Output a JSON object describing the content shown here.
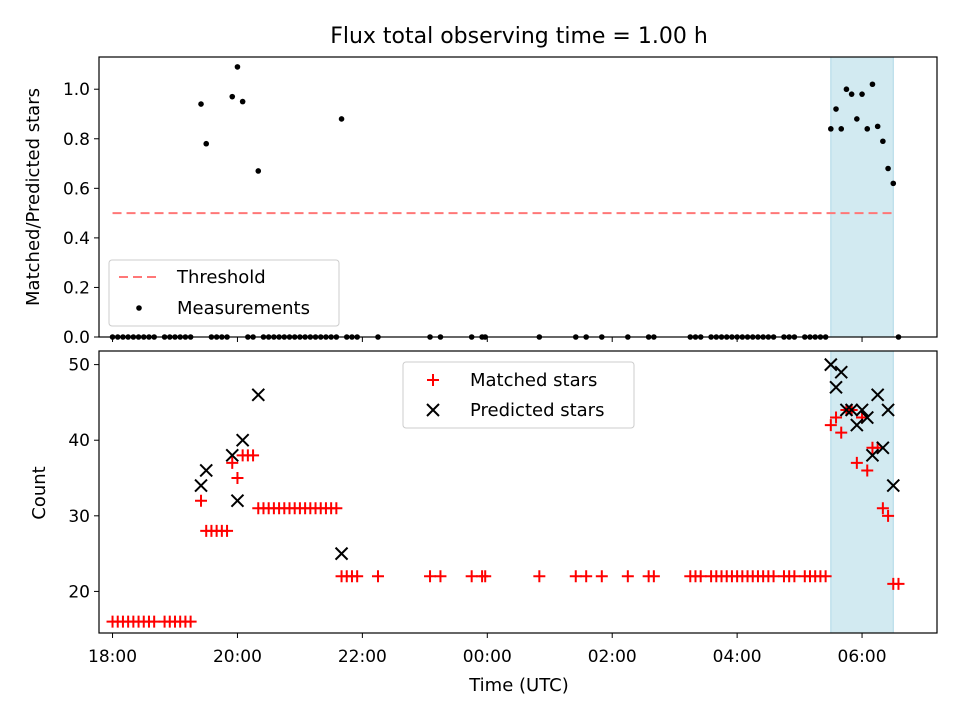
{
  "title": "Flux total observing time = 1.00 h",
  "colors": {
    "threshold": "#ff7777",
    "measurement": "#000000",
    "matched": "#ff0000",
    "predicted": "#000000",
    "window": "#add8e6"
  },
  "chart_data": [
    {
      "type": "scatter",
      "ylabel": "Matched/Predicted stars",
      "xlabel": "",
      "xlim": [
        "17:47",
        "07:12"
      ],
      "ylim": [
        0,
        1.13
      ],
      "yticks": [
        "0.0",
        "0.2",
        "0.4",
        "0.6",
        "0.8",
        "1.0"
      ],
      "xticks": [
        "18:00",
        "20:00",
        "22:00",
        "00:00",
        "02:00",
        "04:00",
        "06:00"
      ],
      "highlight_window": [
        "05:30",
        "06:30"
      ],
      "legend": {
        "position": "lower-left",
        "entries": [
          "Threshold",
          "Measurements"
        ]
      },
      "threshold": {
        "name": "Threshold",
        "y": 0.5,
        "x_range": [
          "18:00",
          "06:30"
        ]
      },
      "series": [
        {
          "name": "Measurements",
          "points": [
            [
              "18:00",
              0
            ],
            [
              "18:05",
              0
            ],
            [
              "18:10",
              0
            ],
            [
              "18:15",
              0
            ],
            [
              "18:20",
              0
            ],
            [
              "18:25",
              0
            ],
            [
              "18:30",
              0
            ],
            [
              "18:35",
              0
            ],
            [
              "18:40",
              0
            ],
            [
              "18:50",
              0
            ],
            [
              "18:55",
              0
            ],
            [
              "19:00",
              0
            ],
            [
              "19:05",
              0
            ],
            [
              "19:10",
              0
            ],
            [
              "19:15",
              0
            ],
            [
              "19:25",
              0.94
            ],
            [
              "19:30",
              0.78
            ],
            [
              "19:35",
              0
            ],
            [
              "19:40",
              0
            ],
            [
              "19:45",
              0
            ],
            [
              "19:50",
              0
            ],
            [
              "19:55",
              0.97
            ],
            [
              "20:00",
              1.09
            ],
            [
              "20:05",
              0.95
            ],
            [
              "20:10",
              0
            ],
            [
              "20:15",
              0
            ],
            [
              "20:20",
              0.67
            ],
            [
              "20:25",
              0
            ],
            [
              "20:30",
              0
            ],
            [
              "20:35",
              0
            ],
            [
              "20:40",
              0
            ],
            [
              "20:45",
              0
            ],
            [
              "20:50",
              0
            ],
            [
              "20:55",
              0
            ],
            [
              "21:00",
              0
            ],
            [
              "21:05",
              0
            ],
            [
              "21:10",
              0
            ],
            [
              "21:15",
              0
            ],
            [
              "21:20",
              0
            ],
            [
              "21:25",
              0
            ],
            [
              "21:30",
              0
            ],
            [
              "21:35",
              0
            ],
            [
              "21:40",
              0.88
            ],
            [
              "21:45",
              0
            ],
            [
              "21:50",
              0
            ],
            [
              "21:55",
              0
            ],
            [
              "22:15",
              0
            ],
            [
              "23:05",
              0
            ],
            [
              "23:15",
              0
            ],
            [
              "23:45",
              0
            ],
            [
              "23:55",
              0
            ],
            [
              "23:58",
              0
            ],
            [
              "00:50",
              0
            ],
            [
              "01:25",
              0
            ],
            [
              "01:35",
              0
            ],
            [
              "01:50",
              0
            ],
            [
              "02:15",
              0
            ],
            [
              "02:35",
              0
            ],
            [
              "02:40",
              0
            ],
            [
              "03:15",
              0
            ],
            [
              "03:20",
              0
            ],
            [
              "03:25",
              0
            ],
            [
              "03:35",
              0
            ],
            [
              "03:40",
              0
            ],
            [
              "03:45",
              0
            ],
            [
              "03:50",
              0
            ],
            [
              "03:55",
              0
            ],
            [
              "04:00",
              0
            ],
            [
              "04:05",
              0
            ],
            [
              "04:10",
              0
            ],
            [
              "04:15",
              0
            ],
            [
              "04:20",
              0
            ],
            [
              "04:25",
              0
            ],
            [
              "04:30",
              0
            ],
            [
              "04:35",
              0
            ],
            [
              "04:45",
              0
            ],
            [
              "04:50",
              0
            ],
            [
              "04:55",
              0
            ],
            [
              "05:05",
              0
            ],
            [
              "05:10",
              0
            ],
            [
              "05:15",
              0
            ],
            [
              "05:20",
              0
            ],
            [
              "05:25",
              0
            ],
            [
              "05:30",
              0.84
            ],
            [
              "05:35",
              0.92
            ],
            [
              "05:40",
              0.84
            ],
            [
              "05:45",
              1.0
            ],
            [
              "05:50",
              0.98
            ],
            [
              "05:55",
              0.88
            ],
            [
              "06:00",
              0.98
            ],
            [
              "06:05",
              0.84
            ],
            [
              "06:10",
              1.02
            ],
            [
              "06:15",
              0.85
            ],
            [
              "06:20",
              0.79
            ],
            [
              "06:25",
              0.68
            ],
            [
              "06:30",
              0.62
            ],
            [
              "06:35",
              0
            ]
          ]
        }
      ]
    },
    {
      "type": "scatter",
      "ylabel": "Count",
      "xlabel": "Time (UTC)",
      "xlim": [
        "17:47",
        "07:12"
      ],
      "ylim": [
        14.5,
        51.8
      ],
      "yticks": [
        "20",
        "30",
        "40",
        "50"
      ],
      "xticks": [
        "18:00",
        "20:00",
        "22:00",
        "00:00",
        "02:00",
        "04:00",
        "06:00"
      ],
      "highlight_window": [
        "05:30",
        "06:30"
      ],
      "legend": {
        "position": "top-center",
        "entries": [
          "Matched stars",
          "Predicted stars"
        ]
      },
      "series": [
        {
          "name": "Matched stars",
          "points": [
            [
              "18:00",
              16
            ],
            [
              "18:05",
              16
            ],
            [
              "18:10",
              16
            ],
            [
              "18:15",
              16
            ],
            [
              "18:20",
              16
            ],
            [
              "18:25",
              16
            ],
            [
              "18:30",
              16
            ],
            [
              "18:35",
              16
            ],
            [
              "18:40",
              16
            ],
            [
              "18:50",
              16
            ],
            [
              "18:55",
              16
            ],
            [
              "19:00",
              16
            ],
            [
              "19:05",
              16
            ],
            [
              "19:10",
              16
            ],
            [
              "19:15",
              16
            ],
            [
              "19:25",
              32
            ],
            [
              "19:30",
              28
            ],
            [
              "19:35",
              28
            ],
            [
              "19:40",
              28
            ],
            [
              "19:45",
              28
            ],
            [
              "19:50",
              28
            ],
            [
              "19:55",
              37
            ],
            [
              "20:00",
              35
            ],
            [
              "20:05",
              38
            ],
            [
              "20:10",
              38
            ],
            [
              "20:15",
              38
            ],
            [
              "20:20",
              31
            ],
            [
              "20:25",
              31
            ],
            [
              "20:30",
              31
            ],
            [
              "20:35",
              31
            ],
            [
              "20:40",
              31
            ],
            [
              "20:45",
              31
            ],
            [
              "20:50",
              31
            ],
            [
              "20:55",
              31
            ],
            [
              "21:00",
              31
            ],
            [
              "21:05",
              31
            ],
            [
              "21:10",
              31
            ],
            [
              "21:15",
              31
            ],
            [
              "21:20",
              31
            ],
            [
              "21:25",
              31
            ],
            [
              "21:30",
              31
            ],
            [
              "21:35",
              31
            ],
            [
              "21:40",
              22
            ],
            [
              "21:45",
              22
            ],
            [
              "21:50",
              22
            ],
            [
              "21:55",
              22
            ],
            [
              "22:15",
              22
            ],
            [
              "23:05",
              22
            ],
            [
              "23:15",
              22
            ],
            [
              "23:45",
              22
            ],
            [
              "23:55",
              22
            ],
            [
              "23:58",
              22
            ],
            [
              "00:50",
              22
            ],
            [
              "01:25",
              22
            ],
            [
              "01:35",
              22
            ],
            [
              "01:50",
              22
            ],
            [
              "02:15",
              22
            ],
            [
              "02:35",
              22
            ],
            [
              "02:40",
              22
            ],
            [
              "03:15",
              22
            ],
            [
              "03:20",
              22
            ],
            [
              "03:25",
              22
            ],
            [
              "03:35",
              22
            ],
            [
              "03:40",
              22
            ],
            [
              "03:45",
              22
            ],
            [
              "03:50",
              22
            ],
            [
              "03:55",
              22
            ],
            [
              "04:00",
              22
            ],
            [
              "04:05",
              22
            ],
            [
              "04:10",
              22
            ],
            [
              "04:15",
              22
            ],
            [
              "04:20",
              22
            ],
            [
              "04:25",
              22
            ],
            [
              "04:30",
              22
            ],
            [
              "04:35",
              22
            ],
            [
              "04:45",
              22
            ],
            [
              "04:50",
              22
            ],
            [
              "04:55",
              22
            ],
            [
              "05:05",
              22
            ],
            [
              "05:10",
              22
            ],
            [
              "05:15",
              22
            ],
            [
              "05:20",
              22
            ],
            [
              "05:25",
              22
            ],
            [
              "05:30",
              42
            ],
            [
              "05:35",
              43
            ],
            [
              "05:40",
              41
            ],
            [
              "05:45",
              44
            ],
            [
              "05:50",
              44
            ],
            [
              "05:55",
              37
            ],
            [
              "06:00",
              43
            ],
            [
              "06:05",
              36
            ],
            [
              "06:10",
              39
            ],
            [
              "06:15",
              39
            ],
            [
              "06:20",
              31
            ],
            [
              "06:25",
              30
            ],
            [
              "06:30",
              21
            ],
            [
              "06:35",
              21
            ]
          ]
        },
        {
          "name": "Predicted stars",
          "points": [
            [
              "19:25",
              34
            ],
            [
              "19:30",
              36
            ],
            [
              "19:55",
              38
            ],
            [
              "20:00",
              32
            ],
            [
              "20:05",
              40
            ],
            [
              "20:20",
              46
            ],
            [
              "21:40",
              25
            ],
            [
              "05:30",
              50
            ],
            [
              "05:35",
              47
            ],
            [
              "05:40",
              49
            ],
            [
              "05:45",
              44
            ],
            [
              "05:50",
              44
            ],
            [
              "05:55",
              42
            ],
            [
              "06:00",
              44
            ],
            [
              "06:05",
              43
            ],
            [
              "06:10",
              38
            ],
            [
              "06:15",
              46
            ],
            [
              "06:20",
              39
            ],
            [
              "06:25",
              44
            ],
            [
              "06:30",
              34
            ]
          ]
        }
      ]
    }
  ]
}
